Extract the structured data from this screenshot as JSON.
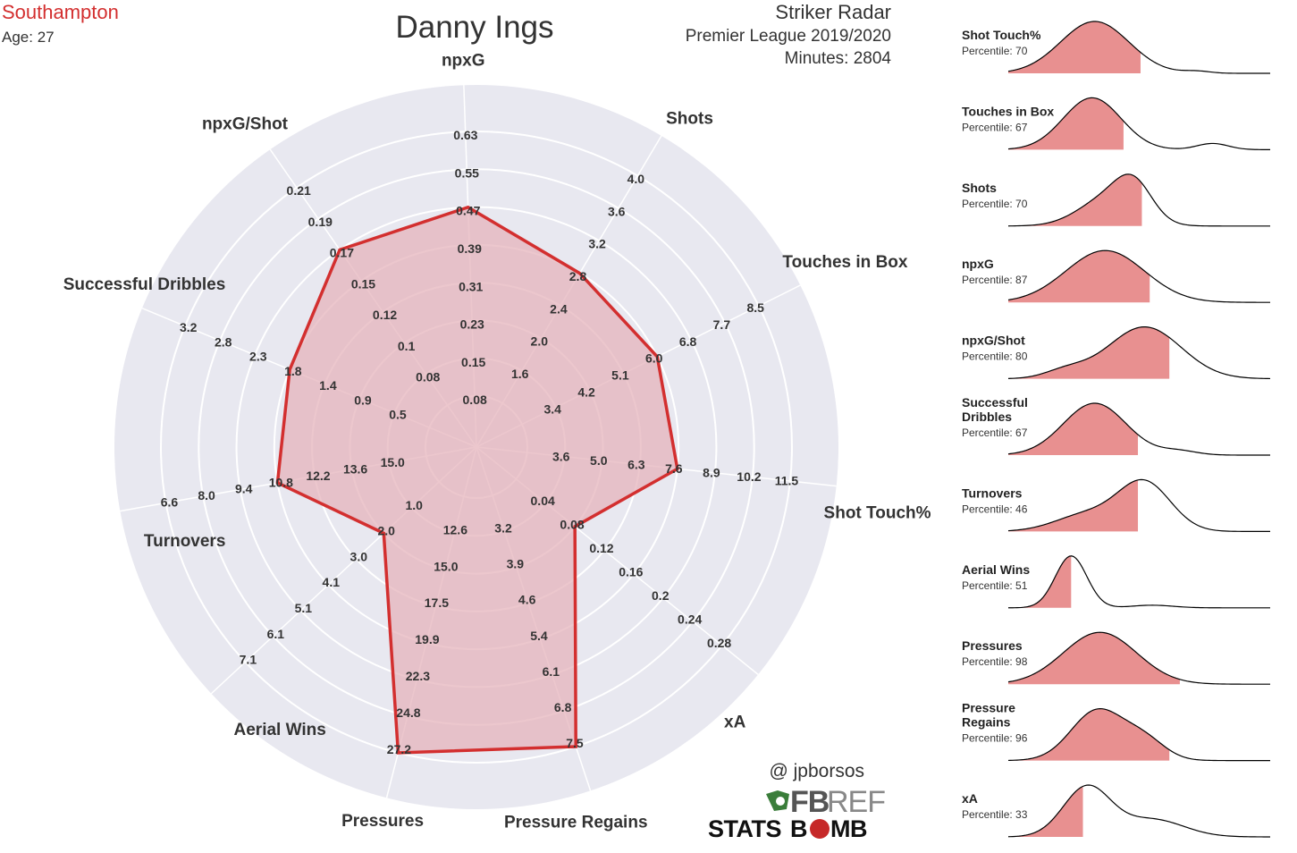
{
  "header": {
    "club": "Southampton",
    "age": "Age: 27",
    "player": "Danny Ings",
    "chart_name": "Striker Radar",
    "competition": "Premier League 2019/2020",
    "minutes": "Minutes: 2804"
  },
  "credits": {
    "handle": "@ jpborsos",
    "fbref_bold": "FB",
    "fbref_light": "REF",
    "statsbomb_a": "STATS",
    "statsbomb_b": "B",
    "statsbomb_c": "MB"
  },
  "colors": {
    "club": "#d32f2f",
    "radar_bg": "#e8e8f0",
    "polygon_fill": "#e5b4bc",
    "polygon_stroke": "#d32f2f",
    "kde_fill": "#e89090",
    "kde_line": "#000000"
  },
  "chart_data": {
    "type": "radar",
    "axes": [
      {
        "name": "npxG",
        "ticks": [
          "0.08",
          "0.15",
          "0.23",
          "0.31",
          "0.39",
          "0.47",
          "0.55",
          "0.63"
        ],
        "value": 0.47
      },
      {
        "name": "Shots",
        "ticks": [
          "1.6",
          "2.0",
          "2.4",
          "2.8",
          "3.2",
          "3.6",
          "4.0"
        ],
        "value": 2.8
      },
      {
        "name": "Touches in Box",
        "ticks": [
          "3.4",
          "4.2",
          "5.1",
          "6.0",
          "6.8",
          "7.7",
          "8.5"
        ],
        "value": 6.0
      },
      {
        "name": "Shot Touch%",
        "ticks": [
          "3.6",
          "5.0",
          "6.3",
          "7.6",
          "8.9",
          "10.2",
          "11.5"
        ],
        "value": 7.6
      },
      {
        "name": "xA",
        "ticks": [
          "0.04",
          "0.08",
          "0.12",
          "0.16",
          "0.2",
          "0.24",
          "0.28"
        ],
        "value": 0.08
      },
      {
        "name": "Pressure Regains",
        "ticks": [
          "3.2",
          "3.9",
          "4.6",
          "5.4",
          "6.1",
          "6.8",
          "7.5"
        ],
        "value": 7.5
      },
      {
        "name": "Pressures",
        "ticks": [
          "12.6",
          "15.0",
          "17.5",
          "19.9",
          "22.3",
          "24.8",
          "27.2"
        ],
        "value": 27.2
      },
      {
        "name": "Aerial Wins",
        "ticks": [
          "1.0",
          "2.0",
          "3.0",
          "4.1",
          "5.1",
          "6.1",
          "7.1"
        ],
        "value": 2.0
      },
      {
        "name": "Turnovers",
        "ticks": [
          "15.0",
          "13.6",
          "12.2",
          "10.8",
          "9.4",
          "8.0",
          "6.6"
        ],
        "value": 10.8
      },
      {
        "name": "Successful Dribbles",
        "ticks": [
          "0.5",
          "0.9",
          "1.4",
          "1.8",
          "2.3",
          "2.8",
          "3.2"
        ],
        "value": 1.8
      },
      {
        "name": "npxG/Shot",
        "ticks": [
          "0.08",
          "0.1",
          "0.12",
          "0.15",
          "0.17",
          "0.19",
          "0.21"
        ],
        "value": 0.17
      }
    ],
    "percentiles": [
      {
        "name": "Shot Touch%",
        "label": "Percentile: 70",
        "percentile": 70
      },
      {
        "name": "Touches in Box",
        "label": "Percentile: 67",
        "percentile": 67
      },
      {
        "name": "Shots",
        "label": "Percentile: 70",
        "percentile": 70
      },
      {
        "name": "npxG",
        "label": "Percentile: 87",
        "percentile": 87
      },
      {
        "name": "npxG/Shot",
        "label": "Percentile: 80",
        "percentile": 80
      },
      {
        "name": "Successful Dribbles",
        "label": "Percentile: 67",
        "percentile": 67
      },
      {
        "name": "Turnovers",
        "label": "Percentile: 46",
        "percentile": 46
      },
      {
        "name": "Aerial Wins",
        "label": "Percentile: 51",
        "percentile": 51
      },
      {
        "name": "Pressures",
        "label": "Percentile: 98",
        "percentile": 98
      },
      {
        "name": "Pressure Regains",
        "label": "Percentile: 96",
        "percentile": 96
      },
      {
        "name": "xA",
        "label": "Percentile: 33",
        "percentile": 33
      }
    ]
  }
}
